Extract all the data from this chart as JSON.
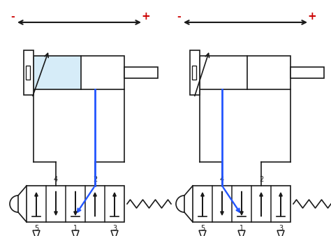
{
  "bg_color": "#ffffff",
  "line_color": "#1a1a1a",
  "blue_color": "#2255ff",
  "red_color": "#cc0000",
  "light_blue_fill": "#d6ecf8",
  "lw": 1.2
}
